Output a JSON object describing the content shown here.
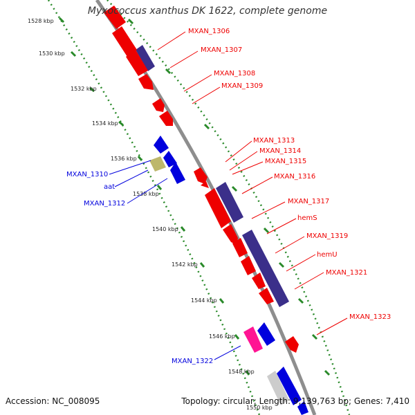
{
  "title": "Myxococcus xanthus DK 1622, complete genome",
  "footer": {
    "accession": "Accession: NC_008095",
    "topology": "Topology: circular; Length: 9,139,763 bp; Genes: 7,410"
  },
  "colors": {
    "forward_gene": "#ee0000",
    "reverse_gene": "#0000dd",
    "tRNA": "#bdb76b",
    "misc": "#ff1493",
    "rRNA_like": "#cccccc",
    "band": "#3b2f8a",
    "backbone": "#8e8e8e",
    "ticks": "#2a8a2a"
  },
  "kbp_labels": [
    "1528 kbp",
    "1530 kbp",
    "1532 kbp",
    "1534 kbp",
    "1536 kbp",
    "1538 kbp",
    "1540 kbp",
    "1542 kbp",
    "1544 kbp",
    "1546 kbp",
    "1548 kbp",
    "1550 kbp"
  ],
  "labels_right": [
    "MXAN_1306",
    "MXAN_1307",
    "MXAN_1308",
    "MXAN_1309",
    "MXAN_1313",
    "MXAN_1314",
    "MXAN_1315",
    "MXAN_1316",
    "MXAN_1317",
    "hemS",
    "MXAN_1319",
    "hemU",
    "MXAN_1321",
    "MXAN_1323"
  ],
  "labels_left": [
    "MXAN_1310",
    "aat",
    "MXAN_1312",
    "MXAN_1322"
  ]
}
